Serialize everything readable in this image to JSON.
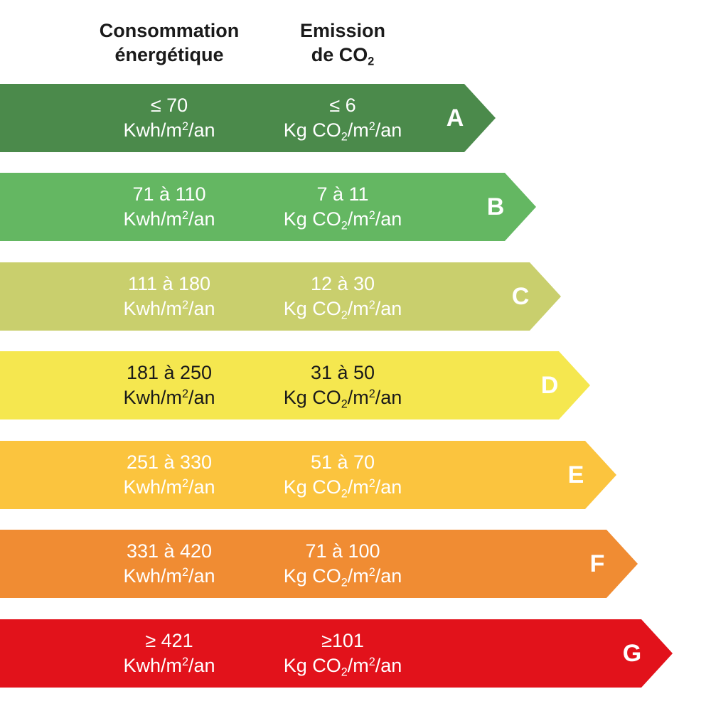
{
  "headers": {
    "energy": [
      "Consommation",
      "énergétique"
    ],
    "co2": [
      "Emission",
      "de CO",
      "2"
    ]
  },
  "units": {
    "energy": [
      "Kwh/m",
      "2",
      "/an"
    ],
    "co2": [
      "Kg CO",
      "2",
      "/m",
      "2",
      "/an"
    ]
  },
  "classes": [
    {
      "letter": "A",
      "energy": "≤ 70",
      "co2": "≤ 6",
      "color": "#4b8a4b",
      "text_color": "#ffffff"
    },
    {
      "letter": "B",
      "energy": "71 à 110",
      "co2": "7 à 11",
      "color": "#64b762",
      "text_color": "#ffffff"
    },
    {
      "letter": "C",
      "energy": "111 à 180",
      "co2": "12 à 30",
      "color": "#c9cf6d",
      "text_color": "#ffffff"
    },
    {
      "letter": "D",
      "energy": "181 à 250",
      "co2": "31 à 50",
      "color": "#f5e74f",
      "text_color": "#1a1a1a"
    },
    {
      "letter": "E",
      "energy": "251 à 330",
      "co2": "51 à 70",
      "color": "#fbc43e",
      "text_color": "#ffffff"
    },
    {
      "letter": "F",
      "energy": "331 à 420",
      "co2": "71 à 100",
      "color": "#f08c33",
      "text_color": "#ffffff"
    },
    {
      "letter": "G",
      "energy": "≥ 421",
      "co2": "≥101",
      "color": "#e2121b",
      "text_color": "#ffffff"
    }
  ]
}
